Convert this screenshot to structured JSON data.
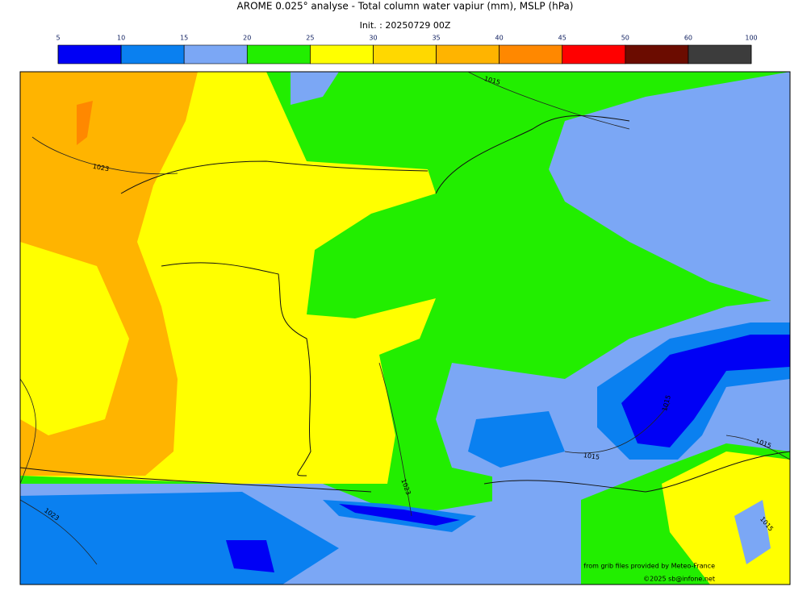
{
  "title": "AROME 0.025° analyse - Total column water vapiur (mm), MSLP (hPa)",
  "subtitle": "Init. : 20250729 00Z",
  "colorbar": {
    "ticks": [
      5,
      10,
      15,
      20,
      25,
      30,
      35,
      40,
      45,
      50,
      60,
      100
    ],
    "colors": [
      "#0000f5",
      "#0a80f0",
      "#7ba7f5",
      "#22ee00",
      "#ffff00",
      "#ffd800",
      "#ffb400",
      "#ff8800",
      "#ff0000",
      "#6b0c00",
      "#3c3c3c"
    ]
  },
  "isobar_labels": [
    "1015",
    "1023",
    "1015",
    "1015",
    "1015",
    "1023",
    "1023",
    "1015"
  ],
  "credits": [
    "from grib files provided by Meteo-France",
    "©2025 sb@infone.net"
  ]
}
